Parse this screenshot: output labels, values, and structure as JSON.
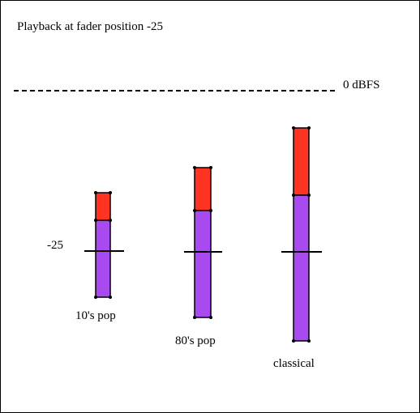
{
  "title": "Playback at fader position -25",
  "reference_line_label": "0 dBFS",
  "fader_label": "-25",
  "colors": {
    "headroom": "#ff3322",
    "body": "#a94af0",
    "outline": "#000000"
  },
  "bars": [
    {
      "label": "10's pop"
    },
    {
      "label": "80's pop"
    },
    {
      "label": "classical"
    }
  ]
}
